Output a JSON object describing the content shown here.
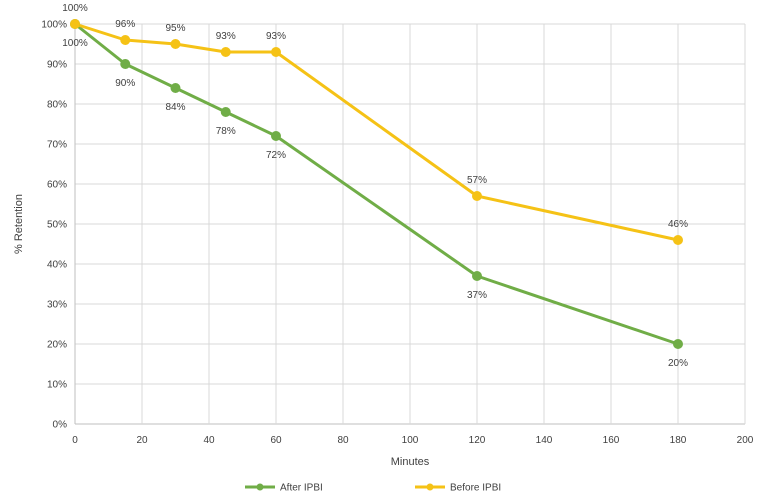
{
  "chart_data": {
    "type": "line",
    "title": "",
    "xlabel": "Minutes",
    "ylabel": "% Retention",
    "xlim": [
      0,
      200
    ],
    "ylim": [
      0,
      100
    ],
    "x_ticks": [
      "0",
      "20",
      "40",
      "60",
      "80",
      "100",
      "120",
      "140",
      "160",
      "180",
      "200"
    ],
    "y_ticks": [
      "0%",
      "10%",
      "20%",
      "30%",
      "40%",
      "50%",
      "60%",
      "70%",
      "80%",
      "90%",
      "100%"
    ],
    "grid": true,
    "legend_position": "bottom",
    "series": [
      {
        "name": "After IPBI",
        "color": "#70ad47",
        "x": [
          0,
          15,
          30,
          45,
          60,
          120,
          180
        ],
        "y": [
          100,
          90,
          84,
          78,
          72,
          37,
          20
        ],
        "labels": [
          "100%",
          "90%",
          "84%",
          "78%",
          "72%",
          "37%",
          "20%"
        ],
        "label_position": "below"
      },
      {
        "name": "Before IPBI",
        "color": "#f5c216",
        "x": [
          0,
          15,
          30,
          45,
          60,
          120,
          180
        ],
        "y": [
          100,
          96,
          95,
          93,
          93,
          57,
          46
        ],
        "labels": [
          "100%",
          "96%",
          "95%",
          "93%",
          "93%",
          "57%",
          "46%"
        ],
        "label_position": "above"
      }
    ]
  }
}
